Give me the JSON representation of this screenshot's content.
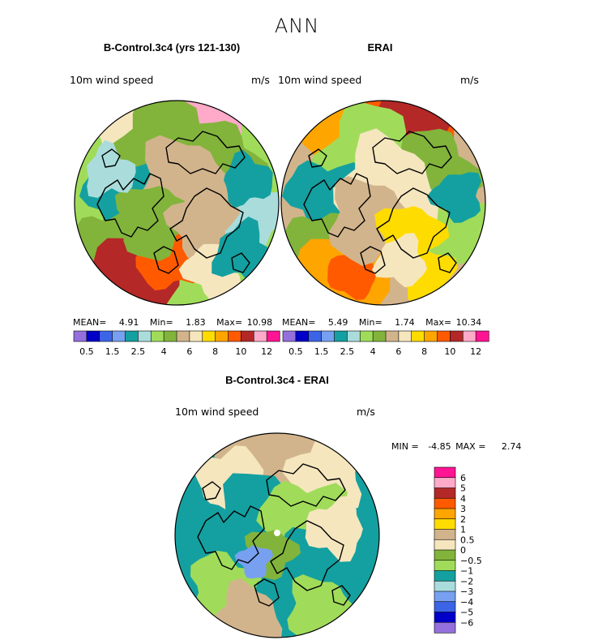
{
  "figure": {
    "main_title": "ANN",
    "colors": {
      "abs_palette": [
        "#9470dc",
        "#0000c8",
        "#3c64e6",
        "#78a0f0",
        "#14a0a0",
        "#aadcdc",
        "#a0dc5a",
        "#82b43c",
        "#d2b48c",
        "#f5e6be",
        "#ffdc00",
        "#ffa500",
        "#ff5a00",
        "#b42828",
        "#ffaac8",
        "#ff1493"
      ],
      "diff_palette": [
        "#9470dc",
        "#0000c8",
        "#3c64e6",
        "#78a0f0",
        "#aadcdc",
        "#14a0a0",
        "#a0dc5a",
        "#82b43c",
        "#f5e6be",
        "#d2b48c",
        "#ffdc00",
        "#ffa500",
        "#ff5a00",
        "#b42828",
        "#ffaac8",
        "#ff1493"
      ]
    }
  },
  "chart_data": [
    {
      "type": "heatmap",
      "title": "B-Control.3c4 (yrs 121-130)",
      "variable_label": "10m wind speed",
      "units": "m/s",
      "stats": {
        "mean_label": "MEAN=",
        "mean": "4.91",
        "min_label": "Min=",
        "min": "1.83",
        "max_label": "Max=",
        "max": "10.98"
      },
      "colorbar": {
        "orientation": "horizontal",
        "levels": [
          0.5,
          1,
          1.5,
          2,
          2.5,
          3,
          4,
          5,
          6,
          7,
          8,
          9,
          10,
          11,
          12
        ],
        "tick_labels": [
          "0.5",
          "1.5",
          "2.5",
          "4",
          "6",
          "8",
          "10",
          "12"
        ]
      }
    },
    {
      "type": "heatmap",
      "title": "ERAI",
      "variable_label": "10m wind speed",
      "units": "m/s",
      "stats": {
        "mean_label": "MEAN=",
        "mean": "5.49",
        "min_label": "Min=",
        "min": "1.74",
        "max_label": "Max=",
        "max": "10.34"
      },
      "colorbar": {
        "orientation": "horizontal",
        "levels": [
          0.5,
          1,
          1.5,
          2,
          2.5,
          3,
          4,
          5,
          6,
          7,
          8,
          9,
          10,
          11,
          12
        ],
        "tick_labels": [
          "0.5",
          "1.5",
          "2.5",
          "4",
          "6",
          "8",
          "10",
          "12"
        ]
      }
    },
    {
      "type": "heatmap",
      "title": "B-Control.3c4 - ERAI",
      "variable_label": "10m wind speed",
      "units": "m/s",
      "stats": {
        "min_label": "MIN =",
        "min": "-4.85",
        "max_label": "MAX =",
        "max": "2.74"
      },
      "colorbar": {
        "orientation": "vertical",
        "levels": [
          -6,
          -5,
          -4,
          -3,
          -2,
          -1,
          -0.5,
          0,
          0.5,
          1,
          2,
          3,
          4,
          5,
          6
        ],
        "tick_labels": [
          "6",
          "5",
          "4",
          "3",
          "2",
          "1",
          "0.5",
          "0",
          "−0.5",
          "−1",
          "−2",
          "−3",
          "−4",
          "−5",
          "−6"
        ]
      }
    }
  ]
}
